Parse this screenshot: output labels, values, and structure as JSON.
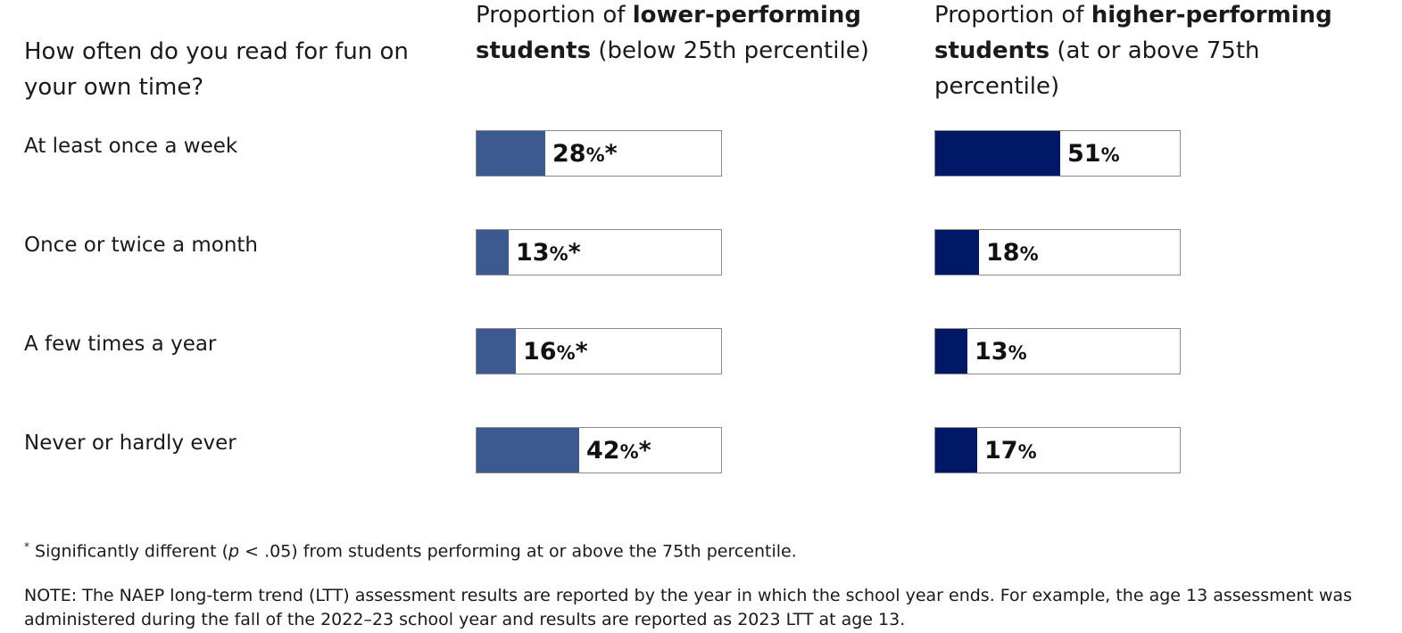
{
  "chart_data": {
    "type": "bar",
    "question": "How often do you read for fun on your own time?",
    "categories": [
      "At least once a week",
      "Once or twice a month",
      "A few times a year",
      "Never or hardly ever"
    ],
    "xlim": [
      0,
      100
    ],
    "series": [
      {
        "title_prefix": "Proportion of ",
        "title_bold": "lower-performing students",
        "title_suffix": " (below 25th percentile)",
        "values": [
          28,
          13,
          16,
          42
        ],
        "marker": "*",
        "color": "#3c5a8f"
      },
      {
        "title_prefix": "Proportion of ",
        "title_bold": "higher-performing students",
        "title_suffix": " (at or above 75th percentile)",
        "values": [
          51,
          18,
          13,
          17
        ],
        "marker": "",
        "color": "#001866"
      }
    ],
    "pct_symbol": "%"
  },
  "footnote": {
    "symbol": "*",
    "before": " Significantly different (",
    "italic": "p",
    "after": " < .05) from students performing at or above the 75th percentile."
  },
  "note": "NOTE: The NAEP long-term trend (LTT) assessment results are reported by the year in which the school year ends. For example, the age 13 assessment was administered during the fall of the 2022–23 school year and results are reported as 2023 LTT at age 13."
}
